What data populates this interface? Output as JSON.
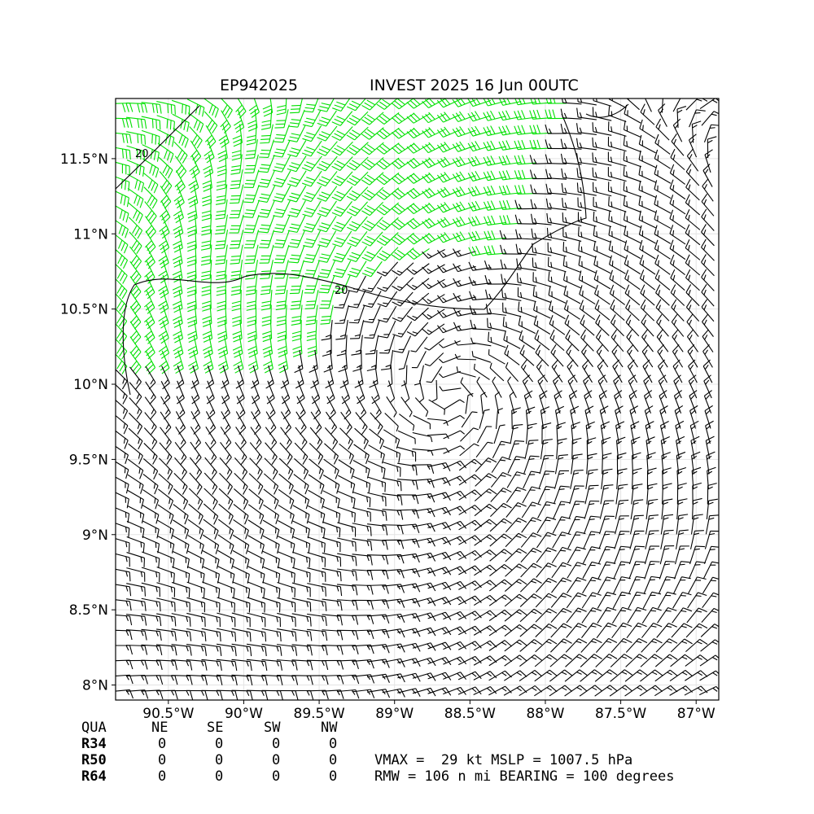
{
  "chart_data": {
    "type": "wind_barbs",
    "title_left": "EP942025",
    "title_right": "INVEST 2025 16 Jun 00UTC",
    "x_ticks": [
      "90.5°W",
      "90°W",
      "89.5°W",
      "89°W",
      "88.5°W",
      "88°W",
      "87.5°W",
      "87°W"
    ],
    "x_tick_values": [
      -90.5,
      -90.0,
      -89.5,
      -89.0,
      -88.5,
      -88.0,
      -87.5,
      -87.0
    ],
    "y_ticks": [
      "11.5°N",
      "11°N",
      "10.5°N",
      "10°N",
      "9.5°N",
      "9°N",
      "8.5°N",
      "8°N"
    ],
    "y_tick_values": [
      11.5,
      11.0,
      10.5,
      10.0,
      9.5,
      9.0,
      8.5,
      8.0
    ],
    "xlim": [
      -90.85,
      -86.85
    ],
    "ylim": [
      7.9,
      11.9
    ],
    "grid": true,
    "center": {
      "lon": -88.63,
      "lat": 9.93
    },
    "barb_colors": {
      "normal": "#000000",
      "strong": "#00e000"
    },
    "contour_labels": [
      "20",
      "20"
    ],
    "quadrant_table": {
      "header": [
        "QUA",
        "NE",
        "SE",
        "SW",
        "NW"
      ],
      "rows": [
        {
          "label": "R34",
          "values": [
            "0",
            "0",
            "0",
            "0"
          ]
        },
        {
          "label": "R50",
          "values": [
            "0",
            "0",
            "0",
            "0"
          ]
        },
        {
          "label": "R64",
          "values": [
            "0",
            "0",
            "0",
            "0"
          ]
        }
      ]
    },
    "summary": {
      "line1": "VMAX =  29 kt MSLP = 1007.5 hPa",
      "line2": "RMW = 106 n mi BEARING = 100 degrees"
    }
  }
}
